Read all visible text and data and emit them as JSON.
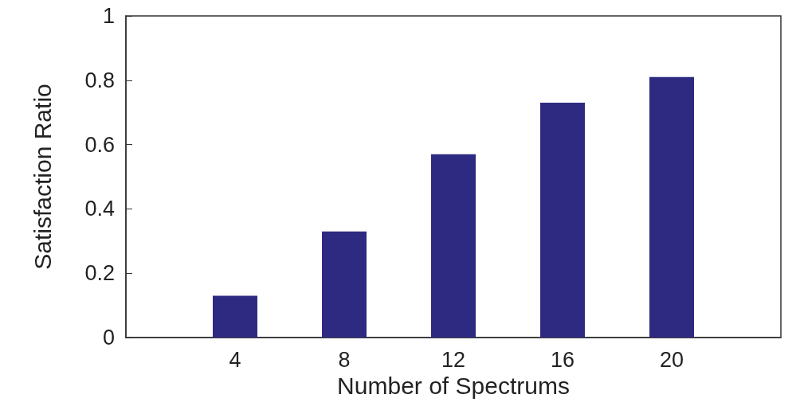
{
  "chart_data": {
    "type": "bar",
    "xlabel": "Number of Spectrums",
    "ylabel": "Satisfaction Ratio",
    "x": [
      4,
      8,
      12,
      16,
      20
    ],
    "values": [
      0.13,
      0.33,
      0.57,
      0.73,
      0.81
    ],
    "color": "#2e2a82",
    "xlim": [
      0,
      24
    ],
    "xticks": [
      4,
      8,
      12,
      16,
      20
    ],
    "ylim": [
      0,
      1
    ],
    "yticks": [
      0,
      0.2,
      0.4,
      0.6,
      0.8,
      1
    ],
    "grid": false
  }
}
